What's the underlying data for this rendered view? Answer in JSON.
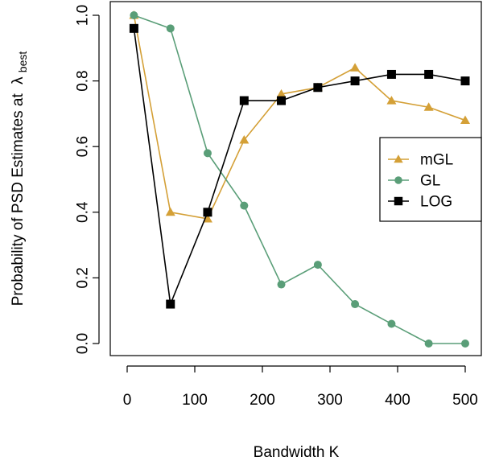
{
  "chart_data": {
    "type": "line",
    "xlabel": "Bandwidth K",
    "ylabel_main": "Probability of PSD Estimates at",
    "ylabel_symbol": "λ",
    "ylabel_subscript": "best",
    "x": [
      10,
      64,
      119,
      173,
      228,
      282,
      337,
      391,
      446,
      500
    ],
    "xlim": [
      0,
      500
    ],
    "ylim": [
      0,
      1
    ],
    "xticks": [
      0,
      100,
      200,
      300,
      400,
      500
    ],
    "yticks": [
      0.0,
      0.2,
      0.4,
      0.6,
      0.8,
      1.0
    ],
    "ytick_labels": [
      "0.0",
      "0.2",
      "0.4",
      "0.6",
      "0.8",
      "1.0"
    ],
    "grid": false,
    "legend_position": "right",
    "series": [
      {
        "name": "mGL",
        "color": "#D4A037",
        "marker": "triangle",
        "values": [
          1.0,
          0.4,
          0.38,
          0.62,
          0.76,
          0.78,
          0.84,
          0.74,
          0.72,
          0.68
        ]
      },
      {
        "name": "GL",
        "color": "#5A9E78",
        "marker": "circle",
        "values": [
          1.0,
          0.96,
          0.58,
          0.42,
          0.18,
          0.24,
          0.12,
          0.06,
          0.0,
          0.0
        ]
      },
      {
        "name": "LOG",
        "color": "#000000",
        "marker": "square",
        "values": [
          0.96,
          0.12,
          0.4,
          0.74,
          0.74,
          0.78,
          0.8,
          0.82,
          0.82,
          0.8
        ]
      }
    ]
  }
}
